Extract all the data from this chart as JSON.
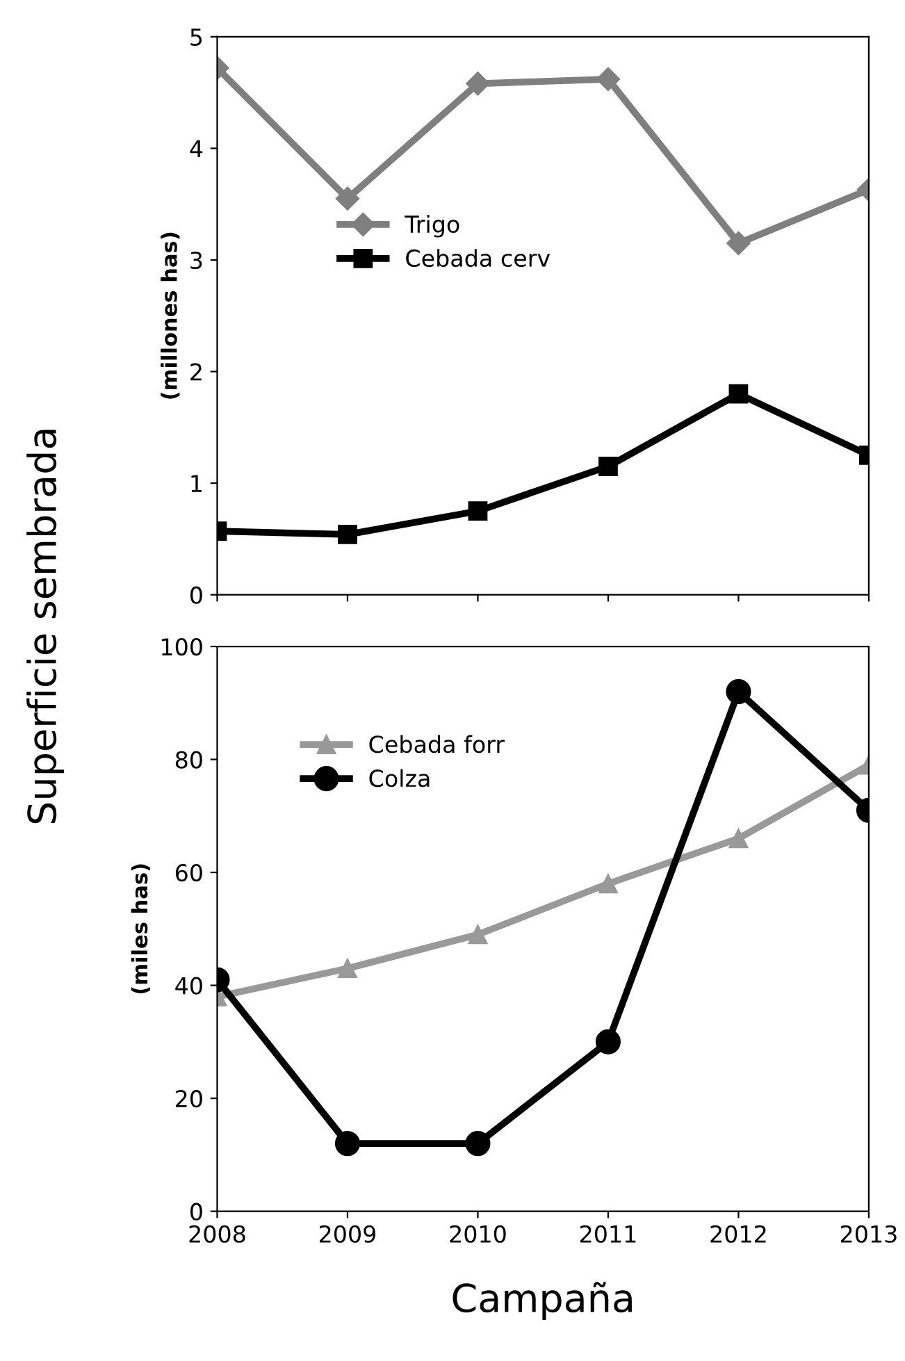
{
  "chart_data": [
    {
      "type": "line",
      "ylabel": "(millones has)",
      "x": [
        2008,
        2009,
        2010,
        2011,
        2012,
        2013
      ],
      "xlim": [
        2008,
        2013
      ],
      "xticks": [
        2008,
        2009,
        2010,
        2011,
        2012,
        2013
      ],
      "ylim": [
        0,
        5
      ],
      "yticks": [
        0,
        1,
        2,
        3,
        4,
        5
      ],
      "tick_labels": "y",
      "legend": "center",
      "grid": false,
      "annotations": [
        "Superficie sembrada"
      ],
      "series": [
        {
          "name": "Trigo",
          "color": "#7f7f7f",
          "marker": "diamond",
          "values": [
            4.72,
            3.55,
            4.58,
            4.62,
            3.15,
            3.63
          ]
        },
        {
          "name": "Cebada cerv",
          "color": "#000000",
          "marker": "square",
          "values": [
            0.57,
            0.54,
            0.75,
            1.15,
            1.8,
            1.25
          ]
        }
      ]
    },
    {
      "type": "line",
      "ylabel": "(miles has)",
      "xlabel": "Campaña",
      "x": [
        2008,
        2009,
        2010,
        2011,
        2012,
        2013
      ],
      "xlim": [
        2008,
        2013
      ],
      "xticks": [
        2008,
        2009,
        2010,
        2011,
        2012,
        2013
      ],
      "ylim": [
        0,
        100
      ],
      "yticks": [
        0,
        20,
        40,
        60,
        80,
        100
      ],
      "legend": "top left",
      "grid": false,
      "series": [
        {
          "name": "Cebada forr",
          "color": "#999999",
          "marker": "triangle",
          "values": [
            38,
            43,
            49,
            58,
            66,
            79
          ]
        },
        {
          "name": "Colza",
          "color": "#000000",
          "marker": "circle",
          "values": [
            41,
            12,
            12,
            30,
            92,
            71
          ]
        }
      ]
    }
  ]
}
